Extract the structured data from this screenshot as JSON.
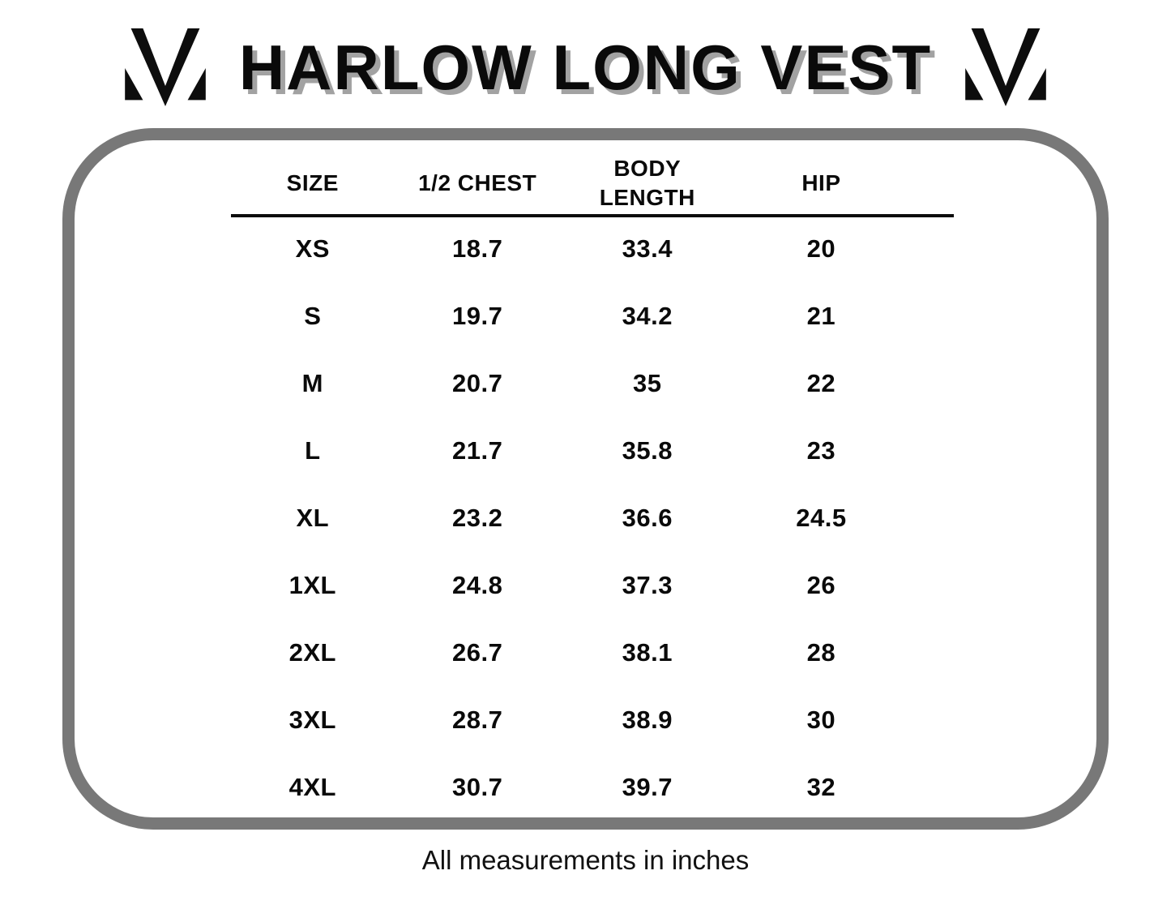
{
  "title": "HARLOW LONG VEST",
  "footer_note": "All measurements in inches",
  "icons": {
    "left_logo": "m-monogram-icon",
    "right_logo": "m-monogram-icon"
  },
  "colors": {
    "text": "#0a0a0a",
    "title_shadow": "#a2a2a2",
    "frame_gray": "#787878",
    "background": "#ffffff"
  },
  "chart_data": {
    "type": "table",
    "title": "HARLOW LONG VEST",
    "headers": [
      "SIZE",
      "1/2 CHEST",
      "BODY LENGTH",
      "HIP"
    ],
    "rows": [
      [
        "XS",
        "18.7",
        "33.4",
        "20"
      ],
      [
        "S",
        "19.7",
        "34.2",
        "21"
      ],
      [
        "M",
        "20.7",
        "35",
        "22"
      ],
      [
        "L",
        "21.7",
        "35.8",
        "23"
      ],
      [
        "XL",
        "23.2",
        "36.6",
        "24.5"
      ],
      [
        "1XL",
        "24.8",
        "37.3",
        "26"
      ],
      [
        "2XL",
        "26.7",
        "38.1",
        "28"
      ],
      [
        "3XL",
        "28.7",
        "38.9",
        "30"
      ],
      [
        "4XL",
        "30.7",
        "39.7",
        "32"
      ]
    ],
    "note": "All measurements in inches",
    "units": "inches"
  }
}
